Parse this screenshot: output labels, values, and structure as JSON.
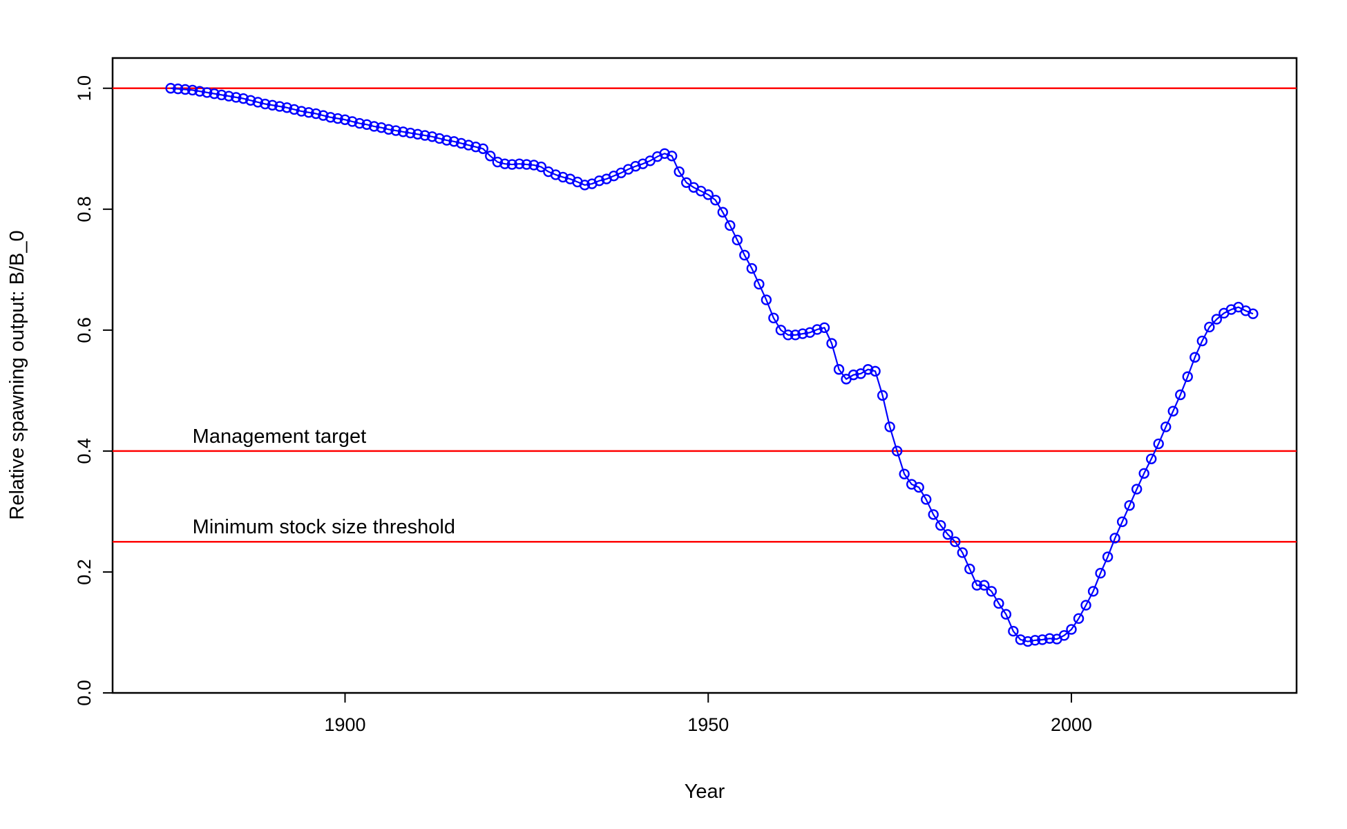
{
  "chart_data": {
    "type": "line",
    "title": "",
    "xlabel": "Year",
    "ylabel": "Relative spawning output: B/B_0",
    "xlim": [
      1868,
      2031
    ],
    "ylim": [
      0,
      1.05
    ],
    "x_ticks": [
      1900,
      1950,
      2000
    ],
    "y_ticks": [
      0.0,
      0.2,
      0.4,
      0.6,
      0.8,
      1.0
    ],
    "x_tick_labels": [
      "1900",
      "1950",
      "2000"
    ],
    "y_tick_labels": [
      "0.0",
      "0.2",
      "0.4",
      "0.6",
      "0.8",
      "1.0"
    ],
    "grid": false,
    "series": [
      {
        "color": "#0000ff",
        "marker": "open-circle",
        "x": [
          1876,
          1877,
          1878,
          1879,
          1880,
          1881,
          1882,
          1883,
          1884,
          1885,
          1886,
          1887,
          1888,
          1889,
          1890,
          1891,
          1892,
          1893,
          1894,
          1895,
          1896,
          1897,
          1898,
          1899,
          1900,
          1901,
          1902,
          1903,
          1904,
          1905,
          1906,
          1907,
          1908,
          1909,
          1910,
          1911,
          1912,
          1913,
          1914,
          1915,
          1916,
          1917,
          1918,
          1919,
          1920,
          1921,
          1922,
          1923,
          1924,
          1925,
          1926,
          1927,
          1928,
          1929,
          1930,
          1931,
          1932,
          1933,
          1934,
          1935,
          1936,
          1937,
          1938,
          1939,
          1940,
          1941,
          1942,
          1943,
          1944,
          1945,
          1946,
          1947,
          1948,
          1949,
          1950,
          1951,
          1952,
          1953,
          1954,
          1955,
          1956,
          1957,
          1958,
          1959,
          1960,
          1961,
          1962,
          1963,
          1964,
          1965,
          1966,
          1967,
          1968,
          1969,
          1970,
          1971,
          1972,
          1973,
          1974,
          1975,
          1976,
          1977,
          1978,
          1979,
          1980,
          1981,
          1982,
          1983,
          1984,
          1985,
          1986,
          1987,
          1988,
          1989,
          1990,
          1991,
          1992,
          1993,
          1994,
          1995,
          1996,
          1997,
          1998,
          1999,
          2000,
          2001,
          2002,
          2003,
          2004,
          2005,
          2006,
          2007,
          2008,
          2009,
          2010,
          2011,
          2012,
          2013,
          2014,
          2015,
          2016,
          2017,
          2018,
          2019,
          2020,
          2021,
          2022,
          2023,
          2024,
          2025
        ],
        "y": [
          1.0,
          0.999,
          0.998,
          0.997,
          0.995,
          0.993,
          0.991,
          0.989,
          0.987,
          0.985,
          0.983,
          0.98,
          0.977,
          0.974,
          0.972,
          0.97,
          0.968,
          0.965,
          0.962,
          0.96,
          0.958,
          0.955,
          0.952,
          0.95,
          0.948,
          0.945,
          0.942,
          0.94,
          0.937,
          0.935,
          0.932,
          0.93,
          0.928,
          0.926,
          0.924,
          0.922,
          0.92,
          0.917,
          0.914,
          0.912,
          0.909,
          0.906,
          0.903,
          0.9,
          0.888,
          0.878,
          0.875,
          0.874,
          0.875,
          0.874,
          0.873,
          0.87,
          0.862,
          0.857,
          0.853,
          0.85,
          0.845,
          0.84,
          0.842,
          0.847,
          0.85,
          0.855,
          0.86,
          0.866,
          0.871,
          0.875,
          0.88,
          0.887,
          0.892,
          0.888,
          0.862,
          0.844,
          0.836,
          0.83,
          0.824,
          0.815,
          0.795,
          0.773,
          0.749,
          0.724,
          0.702,
          0.676,
          0.65,
          0.62,
          0.6,
          0.592,
          0.592,
          0.594,
          0.596,
          0.601,
          0.604,
          0.578,
          0.535,
          0.519,
          0.526,
          0.528,
          0.535,
          0.532,
          0.492,
          0.44,
          0.4,
          0.362,
          0.345,
          0.34,
          0.32,
          0.295,
          0.277,
          0.262,
          0.25,
          0.232,
          0.205,
          0.178,
          0.178,
          0.168,
          0.148,
          0.13,
          0.102,
          0.088,
          0.085,
          0.087,
          0.088,
          0.09,
          0.089,
          0.095,
          0.105,
          0.123,
          0.145,
          0.168,
          0.198,
          0.225,
          0.256,
          0.283,
          0.31,
          0.337,
          0.363,
          0.387,
          0.412,
          0.44,
          0.466,
          0.493,
          0.523,
          0.555,
          0.582,
          0.605,
          0.618,
          0.628,
          0.634,
          0.638,
          0.632,
          0.627
        ]
      }
    ],
    "reference_lines": [
      {
        "value": 1.0,
        "color": "#ff0000",
        "label": ""
      },
      {
        "value": 0.4,
        "color": "#ff0000",
        "label": "Management target"
      },
      {
        "value": 0.25,
        "color": "#ff0000",
        "label": "Minimum stock size threshold"
      }
    ]
  }
}
